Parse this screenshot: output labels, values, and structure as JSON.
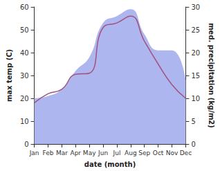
{
  "chart_data": {
    "type": "line",
    "categories": [
      "Jan",
      "Feb",
      "Mar",
      "Apr",
      "May",
      "Jun",
      "Jul",
      "Aug",
      "Sep",
      "Oct",
      "Nov",
      "Dec"
    ],
    "xlabel": "date (month)",
    "ylabel": "max temp (C)",
    "y2label": "med. precipitation (kg/m2)",
    "ylim": [
      0,
      60
    ],
    "yticks": [
      0,
      10,
      20,
      30,
      40,
      50,
      60
    ],
    "y2lim": [
      0,
      30
    ],
    "y2ticks": [
      0,
      5,
      10,
      15,
      20,
      25,
      30
    ],
    "grid": false,
    "series": [
      {
        "name": "max temp",
        "type": "line",
        "color": "#a0527f",
        "values": [
          18,
          22,
          24,
          30.5,
          31,
          51,
          53,
          56,
          45,
          35,
          26,
          20
        ]
      },
      {
        "name": "med. precipitation",
        "type": "area",
        "axis": "y2",
        "color": "#aeb6f0",
        "values": [
          10,
          10.5,
          12,
          16,
          19,
          26.5,
          28,
          29.5,
          24,
          20.5,
          20.5,
          14
        ]
      }
    ]
  }
}
